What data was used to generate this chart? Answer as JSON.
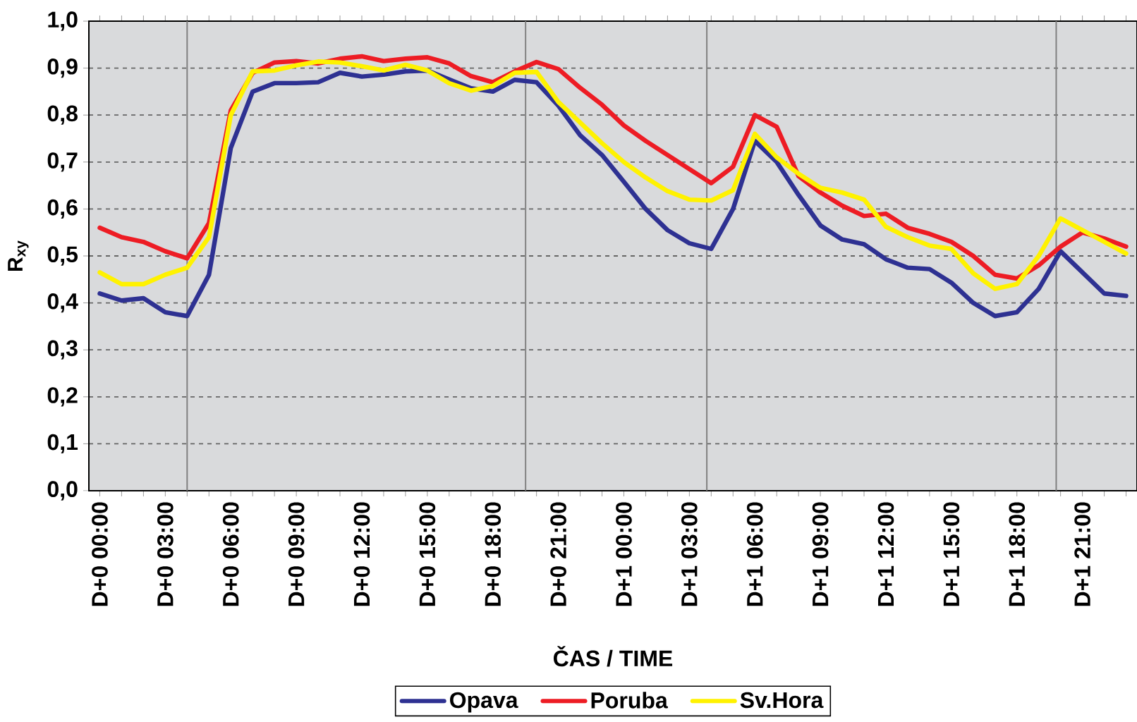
{
  "chart_data": {
    "type": "line",
    "xlabel": "ČAS / TIME",
    "ylabel": "R$_{xy}$",
    "categories": [
      "D+0 00:00",
      null,
      null,
      "D+0 03:00",
      null,
      null,
      "D+0 06:00",
      null,
      null,
      "D+0 09:00",
      null,
      null,
      "D+0 12:00",
      null,
      null,
      "D+0 15:00",
      null,
      null,
      "D+0 18:00",
      null,
      null,
      "D+0 21:00",
      null,
      null,
      "D+1 00:00",
      null,
      null,
      "D+1 03:00",
      null,
      null,
      "D+1 06:00",
      null,
      null,
      "D+1 09:00",
      null,
      null,
      "D+1 12:00",
      null,
      null,
      "D+1 15:00",
      null,
      null,
      "D+1 18:00",
      null,
      null,
      "D+1 21:00",
      null,
      null
    ],
    "ylim": [
      0,
      1
    ],
    "yticks": [
      {
        "value": 0,
        "label": "0,0"
      },
      {
        "value": 0.1,
        "label": "0,1"
      },
      {
        "value": 0.2,
        "label": "0,2"
      },
      {
        "value": 0.3,
        "label": "0,3"
      },
      {
        "value": 0.4,
        "label": "0,4"
      },
      {
        "value": 0.5,
        "label": "0,5"
      },
      {
        "value": 0.6,
        "label": "0,6"
      },
      {
        "value": 0.7,
        "label": "0,7"
      },
      {
        "value": 0.8,
        "label": "0,8"
      },
      {
        "value": 0.9,
        "label": "0,9"
      },
      {
        "value": 1,
        "label": "1,0"
      }
    ],
    "grid": true,
    "legend": "bottom",
    "marker": "none",
    "line_style": "solid",
    "series": [
      {
        "name": "Opava",
        "color": "#2e3192",
        "values": [
          0.42,
          0.405,
          0.41,
          0.38,
          0.372,
          0.46,
          0.73,
          0.85,
          0.868,
          0.868,
          0.87,
          0.89,
          0.882,
          0.886,
          0.893,
          0.895,
          0.876,
          0.857,
          0.85,
          0.875,
          0.87,
          0.82,
          0.757,
          0.715,
          0.658,
          0.6,
          0.555,
          0.527,
          0.515,
          0.6,
          0.745,
          0.7,
          0.63,
          0.565,
          0.535,
          0.525,
          0.493,
          0.475,
          0.472,
          0.443,
          0.4,
          0.372,
          0.38,
          0.43,
          0.51,
          0.465,
          0.42,
          0.415
        ]
      },
      {
        "name": "Poruba",
        "color": "#ed1c24",
        "values": [
          0.56,
          0.54,
          0.53,
          0.51,
          0.495,
          0.57,
          0.81,
          0.89,
          0.912,
          0.915,
          0.91,
          0.92,
          0.925,
          0.915,
          0.92,
          0.923,
          0.91,
          0.883,
          0.87,
          0.893,
          0.913,
          0.898,
          0.858,
          0.822,
          0.778,
          0.745,
          0.715,
          0.685,
          0.655,
          0.69,
          0.8,
          0.775,
          0.67,
          0.635,
          0.607,
          0.585,
          0.59,
          0.56,
          0.547,
          0.53,
          0.5,
          0.46,
          0.452,
          0.48,
          0.52,
          0.55,
          0.537,
          0.52
        ]
      },
      {
        "name": "Sv.Hora",
        "color": "#fff200",
        "values": [
          0.465,
          0.44,
          0.44,
          0.46,
          0.475,
          0.54,
          0.8,
          0.893,
          0.895,
          0.906,
          0.914,
          0.912,
          0.904,
          0.895,
          0.907,
          0.895,
          0.868,
          0.852,
          0.862,
          0.89,
          0.892,
          0.828,
          0.784,
          0.74,
          0.7,
          0.667,
          0.638,
          0.62,
          0.618,
          0.64,
          0.76,
          0.71,
          0.675,
          0.645,
          0.635,
          0.62,
          0.562,
          0.54,
          0.522,
          0.515,
          0.463,
          0.43,
          0.44,
          0.5,
          0.58,
          0.555,
          0.53,
          0.505
        ]
      }
    ]
  }
}
